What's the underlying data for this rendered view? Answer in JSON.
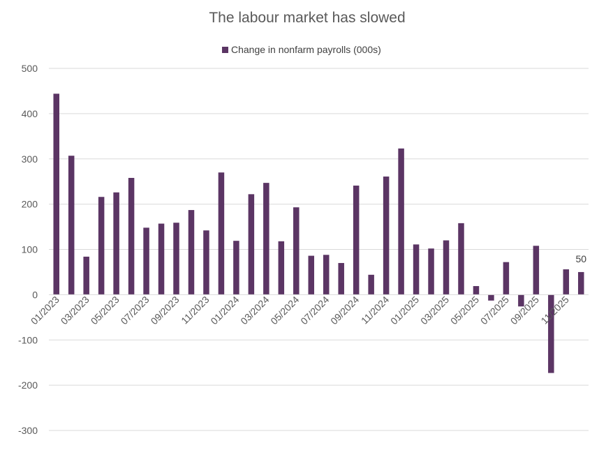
{
  "chart_data": {
    "type": "bar",
    "title": "The labour market has slowed",
    "series": [
      {
        "name": "Change in nonfarm payrolls (000s)",
        "color": "#5b3564",
        "values": [
          444,
          307,
          84,
          216,
          226,
          258,
          148,
          157,
          159,
          187,
          142,
          270,
          119,
          222,
          247,
          118,
          193,
          86,
          88,
          70,
          241,
          44,
          261,
          323,
          111,
          102,
          120,
          158,
          19,
          -13,
          72,
          -26,
          108,
          -173,
          56,
          50
        ]
      }
    ],
    "categories": [
      "01/2023",
      "02/2023",
      "03/2023",
      "04/2023",
      "05/2023",
      "06/2023",
      "07/2023",
      "08/2023",
      "09/2023",
      "10/2023",
      "11/2023",
      "12/2023",
      "01/2024",
      "02/2024",
      "03/2024",
      "04/2024",
      "05/2024",
      "06/2024",
      "07/2024",
      "08/2024",
      "09/2024",
      "10/2024",
      "11/2024",
      "12/2024",
      "01/2025",
      "02/2025",
      "03/2025",
      "04/2025",
      "05/2025",
      "06/2025",
      "07/2025",
      "08/2025",
      "09/2025",
      "10/2025",
      "11/2025",
      "12/2025"
    ],
    "tick_labels": [
      "01/2023",
      "03/2023",
      "05/2023",
      "07/2023",
      "09/2023",
      "11/2023",
      "01/2024",
      "03/2024",
      "05/2024",
      "07/2024",
      "09/2024",
      "11/2024",
      "01/2025",
      "03/2025",
      "05/2025",
      "07/2025",
      "09/2025",
      "11/2025"
    ],
    "y_ticks": [
      "500",
      "400",
      "300",
      "200",
      "100",
      "0",
      "-100",
      "-200",
      "-300"
    ],
    "ylim": [
      -300,
      500
    ],
    "grid": true,
    "legend_position": "top",
    "annotation": "50",
    "xlabel": "",
    "ylabel": ""
  }
}
